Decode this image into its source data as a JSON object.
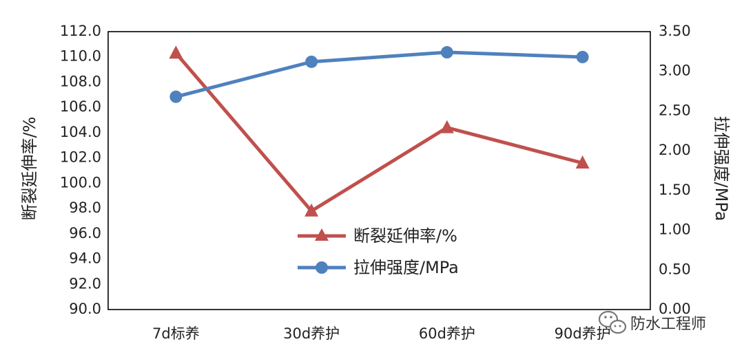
{
  "chart_data": {
    "type": "line",
    "categories": [
      "7d标养",
      "30d养护",
      "60d养护",
      "90d养护"
    ],
    "series": [
      {
        "name": "断裂延伸率/%",
        "axis": "left",
        "marker": "triangle",
        "color": "#c0504d",
        "values": [
          110.3,
          97.8,
          104.4,
          101.6
        ]
      },
      {
        "name": "拉伸强度/MPa",
        "axis": "right",
        "marker": "circle",
        "color": "#4f81bd",
        "values": [
          2.68,
          3.12,
          3.24,
          3.18
        ]
      }
    ],
    "ylabel": "断裂延伸率/%",
    "y2label": "拉伸强度/MPa",
    "ylim": [
      90.0,
      112.0
    ],
    "y2lim": [
      0.0,
      3.5
    ],
    "yticks": [
      "90.0",
      "92.0",
      "94.0",
      "96.0",
      "98.0",
      "100.0",
      "102.0",
      "104.0",
      "106.0",
      "108.0",
      "110.0",
      "112.0"
    ],
    "y2ticks": [
      "0.00",
      "0.50",
      "1.00",
      "1.50",
      "2.00",
      "2.50",
      "3.00",
      "3.50"
    ],
    "grid": false,
    "legend_position": "center-bottom-inside"
  },
  "watermark": {
    "text": "防水工程师",
    "icon": "wechat-icon"
  }
}
